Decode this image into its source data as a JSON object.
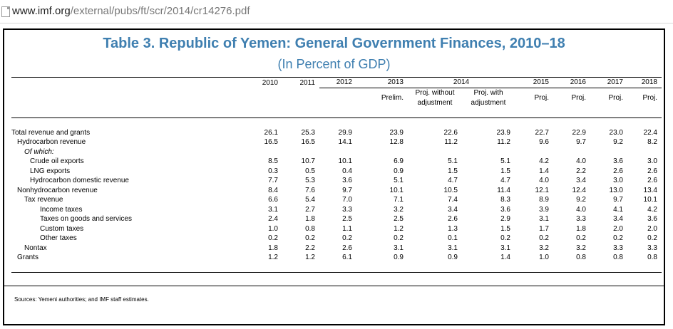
{
  "browser": {
    "url_host": "www.imf.org",
    "url_path": "/external/pubs/ft/scr/2014/cr14276.pdf",
    "page_icon": "document-icon"
  },
  "document": {
    "title": "Table 3. Republic of Yemen: General Government Finances, 2010–18",
    "subtitle": "(In Percent of GDP)",
    "title_color": "#3f7fb0",
    "sources": "Sources: Yemeni authorities; and IMF staff estimates."
  },
  "table": {
    "year_headers": [
      "2010",
      "2011",
      "2012",
      "2013",
      "2014",
      "2015",
      "2016",
      "2017",
      "2018"
    ],
    "sub_headers": [
      "",
      "",
      "",
      "Prelim.",
      "Proj. without adjustment",
      "Proj. with adjustment",
      "Proj.",
      "Proj.",
      "Proj.",
      "Proj."
    ],
    "rows": [
      {
        "label": "Total revenue and grants",
        "indent": 0,
        "values": [
          "26.1",
          "25.3",
          "29.9",
          "23.9",
          "22.6",
          "23.9",
          "22.7",
          "22.9",
          "23.0",
          "22.4"
        ]
      },
      {
        "label": "Hydrocarbon revenue",
        "indent": 1,
        "values": [
          "16.5",
          "16.5",
          "14.1",
          "12.8",
          "11.2",
          "11.2",
          "9.6",
          "9.7",
          "9.2",
          "8.2"
        ]
      },
      {
        "label": "Of which:",
        "indent": 2,
        "italic": true,
        "values": [
          "",
          "",
          "",
          "",
          "",
          "",
          "",
          "",
          "",
          ""
        ]
      },
      {
        "label": "Crude oil exports",
        "indent": 3,
        "values": [
          "8.5",
          "10.7",
          "10.1",
          "6.9",
          "5.1",
          "5.1",
          "4.2",
          "4.0",
          "3.6",
          "3.0"
        ]
      },
      {
        "label": "LNG exports",
        "indent": 3,
        "values": [
          "0.3",
          "0.5",
          "0.4",
          "0.9",
          "1.5",
          "1.5",
          "1.4",
          "2.2",
          "2.6",
          "2.6"
        ]
      },
      {
        "label": "Hydrocarbon domestic revenue",
        "indent": 3,
        "values": [
          "7.7",
          "5.3",
          "3.6",
          "5.1",
          "4.7",
          "4.7",
          "4.0",
          "3.4",
          "3.0",
          "2.6"
        ]
      },
      {
        "label": "Nonhydrocarbon revenue",
        "indent": 1,
        "values": [
          "8.4",
          "7.6",
          "9.7",
          "10.1",
          "10.5",
          "11.4",
          "12.1",
          "12.4",
          "13.0",
          "13.4"
        ]
      },
      {
        "label": "Tax revenue",
        "indent": 2,
        "values": [
          "6.6",
          "5.4",
          "7.0",
          "7.1",
          "7.4",
          "8.3",
          "8.9",
          "9.2",
          "9.7",
          "10.1"
        ]
      },
      {
        "label": "Income taxes",
        "indent": 4,
        "values": [
          "3.1",
          "2.7",
          "3.3",
          "3.2",
          "3.4",
          "3.6",
          "3.9",
          "4.0",
          "4.1",
          "4.2"
        ]
      },
      {
        "label": "Taxes on goods and services",
        "indent": 4,
        "values": [
          "2.4",
          "1.8",
          "2.5",
          "2.5",
          "2.6",
          "2.9",
          "3.1",
          "3.3",
          "3.4",
          "3.6"
        ]
      },
      {
        "label": "Custom taxes",
        "indent": 4,
        "values": [
          "1.0",
          "0.8",
          "1.1",
          "1.2",
          "1.3",
          "1.5",
          "1.7",
          "1.8",
          "2.0",
          "2.0"
        ]
      },
      {
        "label": "Other taxes",
        "indent": 4,
        "values": [
          "0.2",
          "0.2",
          "0.2",
          "0.2",
          "0.1",
          "0.2",
          "0.2",
          "0.2",
          "0.2",
          "0.2"
        ]
      },
      {
        "label": "Nontax",
        "indent": 2,
        "values": [
          "1.8",
          "2.2",
          "2.6",
          "3.1",
          "3.1",
          "3.1",
          "3.2",
          "3.2",
          "3.3",
          "3.3"
        ]
      },
      {
        "label": "Grants",
        "indent": 1,
        "values": [
          "1.2",
          "1.2",
          "6.1",
          "0.9",
          "0.9",
          "1.4",
          "1.0",
          "0.8",
          "0.8",
          "0.8"
        ]
      }
    ]
  }
}
